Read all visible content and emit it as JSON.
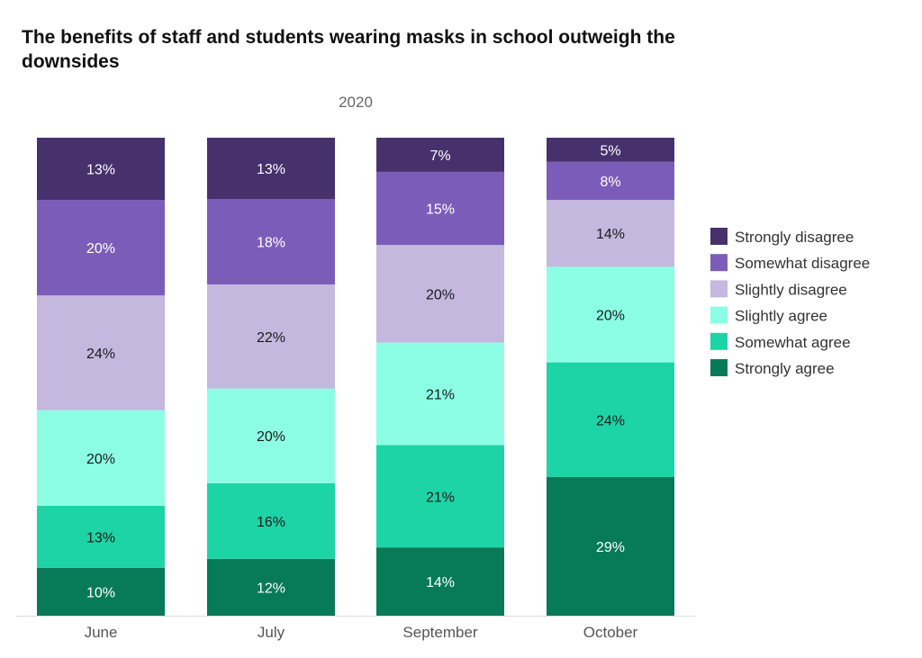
{
  "chart_data": {
    "type": "bar",
    "stacked": true,
    "title": "The benefits of staff and students wearing masks in school outweigh the downsides",
    "subtitle": "2020",
    "categories": [
      "June",
      "July",
      "September",
      "October"
    ],
    "unit": "%",
    "legend_position": "right",
    "grid": false,
    "series": [
      {
        "name": "Strongly agree",
        "color": "#077a57",
        "text_color": "#ffffff",
        "values": [
          10,
          12,
          14,
          29
        ]
      },
      {
        "name": "Somewhat agree",
        "color": "#1dd4a7",
        "text_color": "#1a1a1a",
        "values": [
          13,
          16,
          21,
          24
        ]
      },
      {
        "name": "Slightly agree",
        "color": "#8cfee4",
        "text_color": "#1a1a1a",
        "values": [
          20,
          20,
          21,
          20
        ]
      },
      {
        "name": "Slightly disagree",
        "color": "#c4b8df",
        "text_color": "#1a1a1a",
        "values": [
          24,
          22,
          20,
          14
        ]
      },
      {
        "name": "Somewhat disagree",
        "color": "#7b5db9",
        "text_color": "#ffffff",
        "values": [
          20,
          18,
          15,
          8
        ]
      },
      {
        "name": "Strongly disagree",
        "color": "#46316c",
        "text_color": "#ffffff",
        "values": [
          13,
          13,
          7,
          5
        ]
      }
    ]
  }
}
